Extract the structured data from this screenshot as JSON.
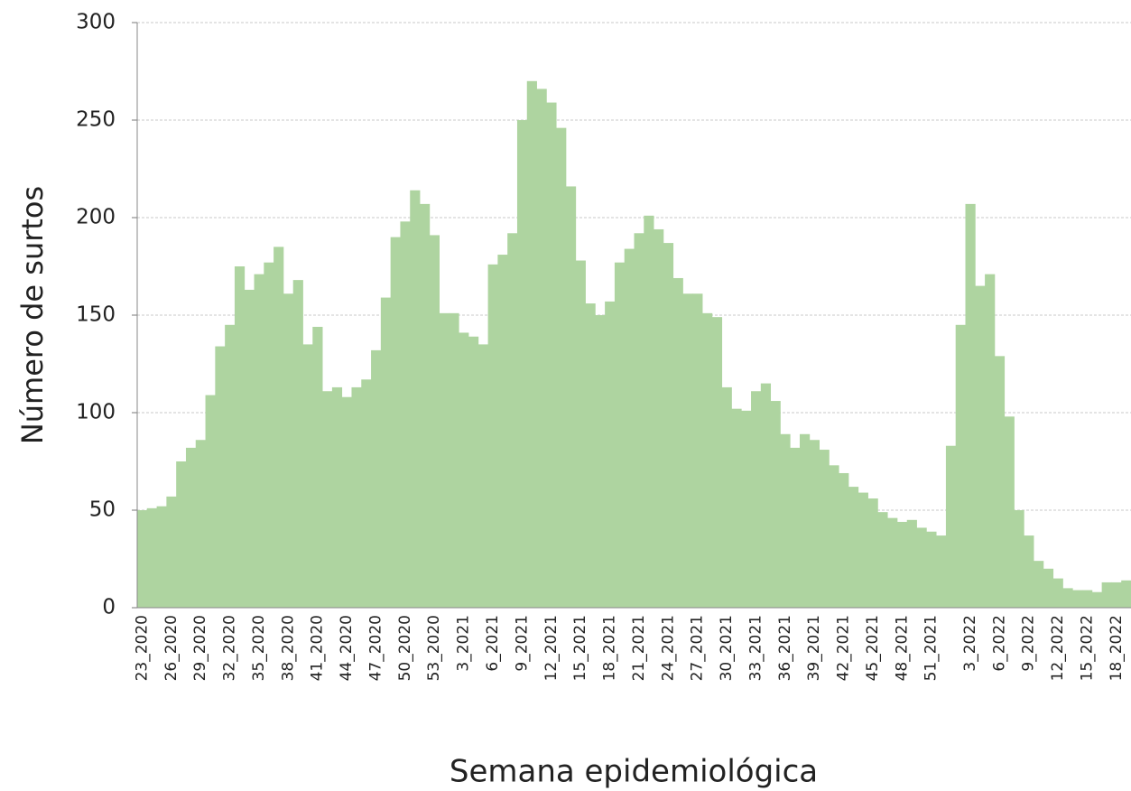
{
  "chart_data": {
    "type": "bar",
    "y_label": "Número de surtos",
    "x_label": "Semana epidemiológica",
    "color": "#aed4a0",
    "grid": true,
    "ylim": [
      0,
      300
    ],
    "yticks": [
      0,
      50,
      100,
      150,
      200,
      250,
      300
    ],
    "categories": [
      "23_2020",
      null,
      null,
      "26_2020",
      null,
      null,
      "29_2020",
      null,
      null,
      "32_2020",
      null,
      null,
      "35_2020",
      null,
      null,
      "38_2020",
      null,
      null,
      "41_2020",
      null,
      null,
      "44_2020",
      null,
      null,
      "47_2020",
      null,
      null,
      "50_2020",
      null,
      null,
      "53_2020",
      null,
      null,
      "3_2021",
      null,
      null,
      "6_2021",
      null,
      null,
      "9_2021",
      null,
      null,
      "12_2021",
      null,
      null,
      "15_2021",
      null,
      null,
      "18_2021",
      null,
      null,
      "21_2021",
      null,
      null,
      "24_2021",
      null,
      null,
      "27_2021",
      null,
      null,
      "30_2021",
      null,
      null,
      "33_2021",
      null,
      null,
      "36_2021",
      null,
      null,
      "39_2021",
      null,
      null,
      "42_2021",
      null,
      null,
      "45_2021",
      null,
      null,
      "48_2021",
      null,
      null,
      "51_2021",
      null,
      null,
      null,
      "3_2022",
      null,
      null,
      "6_2022",
      null,
      null,
      "9_2022",
      null,
      null,
      "12_2022",
      null,
      null,
      "15_2022",
      null,
      null,
      "18_2022",
      null
    ],
    "values": [
      50,
      51,
      52,
      57,
      75,
      82,
      86,
      109,
      134,
      145,
      175,
      163,
      171,
      177,
      185,
      161,
      168,
      135,
      144,
      111,
      113,
      108,
      113,
      117,
      132,
      159,
      190,
      198,
      214,
      207,
      191,
      151,
      151,
      141,
      139,
      135,
      176,
      181,
      192,
      250,
      270,
      266,
      259,
      246,
      216,
      178,
      156,
      150,
      157,
      177,
      184,
      192,
      201,
      194,
      187,
      169,
      161,
      161,
      151,
      149,
      113,
      102,
      101,
      111,
      115,
      106,
      89,
      82,
      89,
      86,
      81,
      73,
      69,
      62,
      59,
      56,
      49,
      46,
      44,
      45,
      41,
      39,
      37,
      83,
      145,
      207,
      165,
      171,
      129,
      98,
      50,
      37,
      24,
      20,
      15,
      10,
      9,
      9,
      8,
      13,
      13,
      14
    ]
  }
}
